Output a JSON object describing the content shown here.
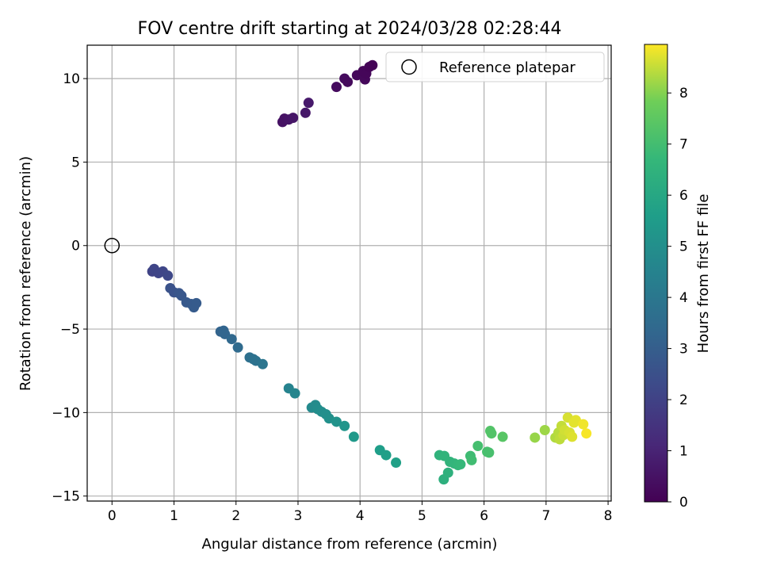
{
  "chart_data": {
    "type": "scatter",
    "title": "FOV centre drift starting at 2024/03/28 02:28:44",
    "xlabel": "Angular distance from reference (arcmin)",
    "ylabel": "Rotation from reference (arcmin)",
    "xlim": [
      -0.4,
      8.05
    ],
    "ylim": [
      -15.3,
      12.0
    ],
    "xticks": [
      0,
      1,
      2,
      3,
      4,
      5,
      6,
      7,
      8
    ],
    "yticks": [
      -15,
      -10,
      -5,
      0,
      5,
      10
    ],
    "grid": true,
    "legend": {
      "position": "top-right",
      "label": "Reference platepar"
    },
    "reference_point": {
      "x": 0,
      "y": 0
    },
    "colorbar": {
      "label": "Hours from first FF file",
      "colormap": "viridis",
      "range": [
        0,
        8.95
      ],
      "ticks": [
        0,
        1,
        2,
        3,
        4,
        5,
        6,
        7,
        8
      ]
    },
    "points": [
      {
        "x": 2.75,
        "y": 7.4,
        "t": 0.5
      },
      {
        "x": 2.78,
        "y": 7.6,
        "t": 0.5
      },
      {
        "x": 2.85,
        "y": 7.55,
        "t": 0.55
      },
      {
        "x": 2.92,
        "y": 7.65,
        "t": 0.6
      },
      {
        "x": 3.12,
        "y": 7.95,
        "t": 0.65
      },
      {
        "x": 3.17,
        "y": 8.55,
        "t": 0.7
      },
      {
        "x": 3.62,
        "y": 9.5,
        "t": 0.3
      },
      {
        "x": 3.75,
        "y": 10.0,
        "t": 0.3
      },
      {
        "x": 3.8,
        "y": 9.8,
        "t": 0.25
      },
      {
        "x": 3.95,
        "y": 10.2,
        "t": 0.2
      },
      {
        "x": 4.05,
        "y": 10.45,
        "t": 0.15
      },
      {
        "x": 4.08,
        "y": 9.95,
        "t": 0.2
      },
      {
        "x": 4.1,
        "y": 10.3,
        "t": 0.15
      },
      {
        "x": 4.15,
        "y": 10.7,
        "t": 0.1
      },
      {
        "x": 4.2,
        "y": 10.8,
        "t": 0.05
      },
      {
        "x": 0.65,
        "y": -1.55,
        "t": 2.05
      },
      {
        "x": 0.68,
        "y": -1.4,
        "t": 2.1
      },
      {
        "x": 0.75,
        "y": -1.65,
        "t": 2.1
      },
      {
        "x": 0.82,
        "y": -1.55,
        "t": 2.15
      },
      {
        "x": 0.9,
        "y": -1.8,
        "t": 2.2
      },
      {
        "x": 0.94,
        "y": -2.55,
        "t": 2.55
      },
      {
        "x": 1.0,
        "y": -2.8,
        "t": 2.6
      },
      {
        "x": 1.08,
        "y": -2.85,
        "t": 2.7
      },
      {
        "x": 1.12,
        "y": -3.0,
        "t": 2.75
      },
      {
        "x": 1.2,
        "y": -3.4,
        "t": 2.8
      },
      {
        "x": 1.28,
        "y": -3.5,
        "t": 2.85
      },
      {
        "x": 1.32,
        "y": -3.7,
        "t": 2.9
      },
      {
        "x": 1.36,
        "y": -3.45,
        "t": 2.9
      },
      {
        "x": 1.75,
        "y": -5.15,
        "t": 3.2
      },
      {
        "x": 1.8,
        "y": -5.1,
        "t": 3.25
      },
      {
        "x": 1.82,
        "y": -5.3,
        "t": 3.3
      },
      {
        "x": 1.93,
        "y": -5.6,
        "t": 3.4
      },
      {
        "x": 2.03,
        "y": -6.1,
        "t": 3.5
      },
      {
        "x": 2.22,
        "y": -6.7,
        "t": 3.7
      },
      {
        "x": 2.28,
        "y": -6.8,
        "t": 3.75
      },
      {
        "x": 2.32,
        "y": -6.9,
        "t": 3.8
      },
      {
        "x": 2.43,
        "y": -7.1,
        "t": 3.9
      },
      {
        "x": 2.85,
        "y": -8.55,
        "t": 4.5
      },
      {
        "x": 2.95,
        "y": -8.85,
        "t": 4.6
      },
      {
        "x": 3.22,
        "y": -9.7,
        "t": 4.8
      },
      {
        "x": 3.28,
        "y": -9.55,
        "t": 4.85
      },
      {
        "x": 3.32,
        "y": -9.8,
        "t": 4.9
      },
      {
        "x": 3.38,
        "y": -9.95,
        "t": 4.95
      },
      {
        "x": 3.45,
        "y": -10.1,
        "t": 5.0
      },
      {
        "x": 3.5,
        "y": -10.35,
        "t": 5.05
      },
      {
        "x": 3.62,
        "y": -10.55,
        "t": 5.15
      },
      {
        "x": 3.75,
        "y": -10.8,
        "t": 5.25
      },
      {
        "x": 3.9,
        "y": -11.45,
        "t": 5.4
      },
      {
        "x": 4.32,
        "y": -12.25,
        "t": 5.6
      },
      {
        "x": 4.42,
        "y": -12.55,
        "t": 5.65
      },
      {
        "x": 4.58,
        "y": -13.0,
        "t": 5.7
      },
      {
        "x": 5.28,
        "y": -12.55,
        "t": 6.5
      },
      {
        "x": 5.36,
        "y": -12.6,
        "t": 6.55
      },
      {
        "x": 5.35,
        "y": -14.0,
        "t": 6.35
      },
      {
        "x": 5.42,
        "y": -13.6,
        "t": 6.4
      },
      {
        "x": 5.45,
        "y": -12.95,
        "t": 6.55
      },
      {
        "x": 5.52,
        "y": -13.05,
        "t": 6.6
      },
      {
        "x": 5.58,
        "y": -13.15,
        "t": 6.65
      },
      {
        "x": 5.62,
        "y": -13.1,
        "t": 6.7
      },
      {
        "x": 5.78,
        "y": -12.6,
        "t": 6.9
      },
      {
        "x": 5.8,
        "y": -12.85,
        "t": 6.95
      },
      {
        "x": 5.9,
        "y": -12.0,
        "t": 7.05
      },
      {
        "x": 6.05,
        "y": -12.35,
        "t": 7.1
      },
      {
        "x": 6.08,
        "y": -12.4,
        "t": 7.1
      },
      {
        "x": 6.1,
        "y": -11.1,
        "t": 7.3
      },
      {
        "x": 6.12,
        "y": -11.25,
        "t": 7.3
      },
      {
        "x": 6.3,
        "y": -11.45,
        "t": 7.4
      },
      {
        "x": 6.82,
        "y": -11.5,
        "t": 8.15
      },
      {
        "x": 6.98,
        "y": -11.05,
        "t": 8.2
      },
      {
        "x": 7.15,
        "y": -11.5,
        "t": 8.35
      },
      {
        "x": 7.2,
        "y": -11.2,
        "t": 8.4
      },
      {
        "x": 7.22,
        "y": -11.6,
        "t": 8.45
      },
      {
        "x": 7.25,
        "y": -10.8,
        "t": 8.5
      },
      {
        "x": 7.28,
        "y": -11.35,
        "t": 8.55
      },
      {
        "x": 7.3,
        "y": -11.05,
        "t": 8.6
      },
      {
        "x": 7.35,
        "y": -10.3,
        "t": 8.65
      },
      {
        "x": 7.38,
        "y": -11.2,
        "t": 8.65
      },
      {
        "x": 7.42,
        "y": -11.45,
        "t": 8.7
      },
      {
        "x": 7.45,
        "y": -10.6,
        "t": 8.75
      },
      {
        "x": 7.48,
        "y": -10.45,
        "t": 8.75
      },
      {
        "x": 7.6,
        "y": -10.7,
        "t": 8.85
      },
      {
        "x": 7.65,
        "y": -11.25,
        "t": 8.9
      }
    ]
  }
}
